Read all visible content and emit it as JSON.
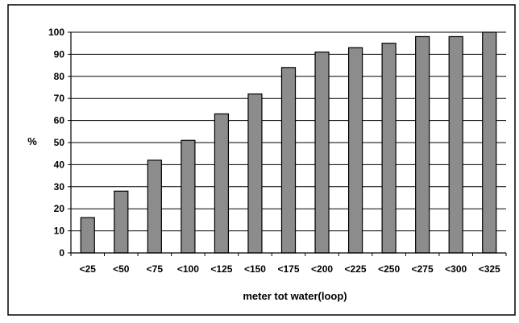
{
  "chart_data": {
    "type": "bar",
    "title": "",
    "xlabel": "meter tot water(loop)",
    "ylabel": "%",
    "categories": [
      "<25",
      "<50",
      "<75",
      "<100",
      "<125",
      "<150",
      "<175",
      "<200",
      "<225",
      "<250",
      "<275",
      "<300",
      "<325"
    ],
    "values": [
      16,
      28,
      42,
      51,
      63,
      72,
      84,
      91,
      93,
      95,
      98,
      98,
      100
    ],
    "ylim": [
      0,
      100
    ],
    "yticks": [
      0,
      10,
      20,
      30,
      40,
      50,
      60,
      70,
      80,
      90,
      100
    ],
    "grid": true,
    "legend": "none",
    "colors": {
      "bar_fill": "#8c8c8c",
      "bar_stroke": "#000000",
      "grid": "#000000",
      "background": "#ffffff"
    }
  }
}
